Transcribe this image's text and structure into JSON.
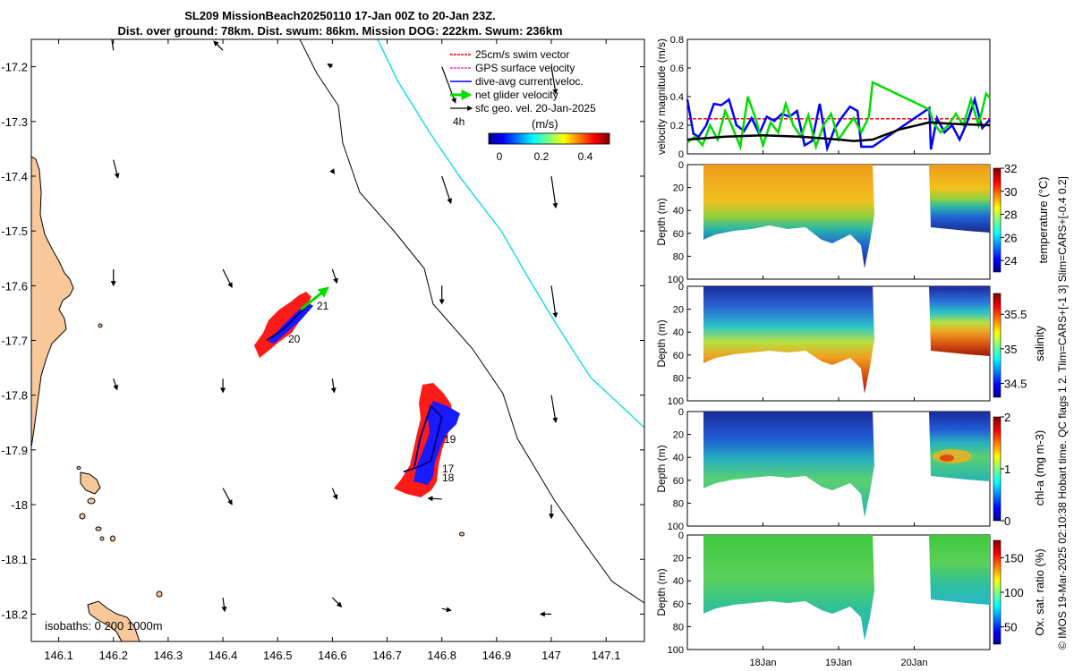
{
  "title": {
    "line1": "SL209 MissionBeach20250110 17-Jan 00Z to 20-Jan 23Z.",
    "line2": "Dist. over ground: 78km. Dist. swum: 86km. Mission DOG: 222km. Swum: 236km"
  },
  "side_credit": "© IMOS 19-Mar-2025 02:10:38 Hobart time. QC flags 1  2. Tlim=CARS+[-1 3] Slim=CARS+[-0.4 0.2]",
  "colors": {
    "land": "#f8c89a",
    "coast_line": "#000000",
    "isobath_200": "#000000",
    "isobath_1000": "#22dddd",
    "swim": "#ff0000",
    "gps": "#ff33cc",
    "dive_avg": "#0000ff",
    "net": "#00dd00",
    "sfc_geo": "#000000"
  },
  "map": {
    "legend": {
      "items": [
        {
          "label": "25cm/s swim vector",
          "color": "#ff0000"
        },
        {
          "label": "GPS surface velocity",
          "color": "#ff33cc"
        },
        {
          "label": "dive-avg current veloc.",
          "color": "#0000ff"
        },
        {
          "label": "net glider velocity",
          "color": "#00dd00"
        },
        {
          "label": "sfc geo. vel. 20-Jan-2025",
          "color": "#000000"
        }
      ],
      "interval_label": "4h"
    },
    "colorbar": {
      "label": "(m/s)",
      "ticks": [
        "0",
        "0.2",
        "0.4"
      ],
      "range": [
        0,
        0.5
      ]
    },
    "isobath_note": "isobaths: 0   200  1000m",
    "day_labels": [
      "21",
      "20",
      "19",
      "18",
      "17"
    ]
  },
  "chart_data": [
    {
      "type": "map",
      "xlim": [
        146.05,
        147.17
      ],
      "ylim": [
        -18.25,
        -17.15
      ],
      "xticks": [
        "146.1",
        "146.2",
        "146.3",
        "146.4",
        "146.5",
        "146.6",
        "146.7",
        "146.8",
        "146.9",
        "147",
        "147.1"
      ],
      "yticks": [
        "-17.2",
        "-17.3",
        "-17.4",
        "-17.5",
        "-17.6",
        "-17.7",
        "-17.8",
        "-17.9",
        "-18",
        "-18.1",
        "-18.2"
      ],
      "glider_track_north": [
        [
          146.48,
          -17.7
        ],
        [
          146.51,
          -17.68
        ],
        [
          146.54,
          -17.65
        ],
        [
          146.57,
          -17.62
        ]
      ],
      "glider_track_south": [
        [
          146.73,
          -17.94
        ],
        [
          146.76,
          -17.93
        ],
        [
          146.78,
          -17.92
        ],
        [
          146.79,
          -17.88
        ],
        [
          146.8,
          -17.84
        ],
        [
          146.78,
          -17.82
        ],
        [
          146.76,
          -17.88
        ],
        [
          146.75,
          -17.93
        ]
      ],
      "geo_vectors": [
        {
          "lon": 146.2,
          "lat": -17.17,
          "u": -0.03,
          "v": 0.2
        },
        {
          "lon": 146.4,
          "lat": -17.17,
          "u": -0.1,
          "v": 0.1
        },
        {
          "lon": 146.6,
          "lat": -17.2,
          "u": -0.05,
          "v": 0.03
        },
        {
          "lon": 146.8,
          "lat": -17.2,
          "u": 0.15,
          "v": -0.4
        },
        {
          "lon": 147.0,
          "lat": -17.2,
          "u": 0.05,
          "v": -0.3
        },
        {
          "lon": 146.2,
          "lat": -17.37,
          "u": 0.05,
          "v": -0.2
        },
        {
          "lon": 146.6,
          "lat": -17.39,
          "u": 0.02,
          "v": -0.03
        },
        {
          "lon": 146.8,
          "lat": -17.4,
          "u": 0.1,
          "v": -0.3
        },
        {
          "lon": 147.0,
          "lat": -17.4,
          "u": 0.05,
          "v": -0.35
        },
        {
          "lon": 146.2,
          "lat": -17.57,
          "u": 0.0,
          "v": -0.18
        },
        {
          "lon": 146.4,
          "lat": -17.57,
          "u": 0.1,
          "v": -0.2
        },
        {
          "lon": 146.6,
          "lat": -17.57,
          "u": 0.05,
          "v": -0.15
        },
        {
          "lon": 146.8,
          "lat": -17.6,
          "u": 0.0,
          "v": -0.2
        },
        {
          "lon": 147.0,
          "lat": -17.6,
          "u": 0.05,
          "v": -0.35
        },
        {
          "lon": 146.2,
          "lat": -17.77,
          "u": 0.04,
          "v": -0.12
        },
        {
          "lon": 146.4,
          "lat": -17.77,
          "u": 0.0,
          "v": -0.15
        },
        {
          "lon": 146.6,
          "lat": -17.77,
          "u": 0.02,
          "v": -0.15
        },
        {
          "lon": 147.0,
          "lat": -17.8,
          "u": 0.05,
          "v": -0.3
        },
        {
          "lon": 146.4,
          "lat": -17.97,
          "u": 0.1,
          "v": -0.18
        },
        {
          "lon": 146.6,
          "lat": -17.97,
          "u": 0.05,
          "v": -0.12
        },
        {
          "lon": 146.8,
          "lat": -17.99,
          "u": -0.15,
          "v": 0.01
        },
        {
          "lon": 147.0,
          "lat": -18.0,
          "u": 0.0,
          "v": -0.15
        },
        {
          "lon": 146.4,
          "lat": -18.17,
          "u": 0.02,
          "v": -0.15
        },
        {
          "lon": 146.6,
          "lat": -18.17,
          "u": 0.1,
          "v": -0.1
        },
        {
          "lon": 146.8,
          "lat": -18.19,
          "u": 0.1,
          "v": -0.02
        },
        {
          "lon": 147.0,
          "lat": -18.2,
          "u": -0.12,
          "v": 0.0
        }
      ]
    },
    {
      "type": "line",
      "ylabel": "velocity magnitude (m/s)",
      "ylim": [
        0,
        0.8
      ],
      "yticks": [
        "0",
        "0.2",
        "0.4",
        "0.6",
        "0.8"
      ],
      "xlim_days": [
        17.0,
        21.0
      ],
      "xticks": [
        {
          "day": 18.0,
          "label": "18Jan"
        },
        {
          "day": 19.0,
          "label": "19Jan"
        },
        {
          "day": 20.0,
          "label": "20Jan"
        }
      ],
      "series": [
        {
          "name": "swim speed",
          "color": "#ff0000",
          "dashed": true,
          "x": [
            17.0,
            19.45,
            20.2,
            21.0
          ],
          "values": [
            0.245,
            0.245,
            0.245,
            0.245
          ]
        },
        {
          "name": "dive-avg current",
          "color": "#0000ff",
          "x": [
            17.0,
            17.08,
            17.15,
            17.25,
            17.35,
            17.45,
            17.55,
            17.65,
            17.75,
            17.85,
            17.95,
            18.05,
            18.15,
            18.25,
            18.35,
            18.45,
            18.55,
            18.65,
            18.75,
            18.85,
            18.95,
            19.05,
            19.15,
            19.25,
            19.3,
            19.45,
            20.2,
            20.22,
            20.3,
            20.4,
            20.5,
            20.6,
            20.7,
            20.8,
            20.9,
            21.0
          ],
          "values": [
            0.38,
            0.14,
            0.12,
            0.2,
            0.35,
            0.34,
            0.38,
            0.2,
            0.16,
            0.25,
            0.14,
            0.26,
            0.23,
            0.28,
            0.26,
            0.3,
            0.06,
            0.09,
            0.35,
            0.04,
            0.18,
            0.26,
            0.33,
            0.3,
            0.05,
            0.05,
            0.32,
            0.03,
            0.25,
            0.15,
            0.2,
            0.1,
            0.22,
            0.38,
            0.18,
            0.24
          ]
        },
        {
          "name": "net glider velocity",
          "color": "#00dd00",
          "x": [
            17.0,
            17.1,
            17.2,
            17.3,
            17.4,
            17.5,
            17.6,
            17.7,
            17.8,
            17.9,
            18.0,
            18.1,
            18.2,
            18.3,
            18.4,
            18.5,
            18.6,
            18.7,
            18.8,
            18.9,
            19.0,
            19.1,
            19.2,
            19.3,
            19.4,
            19.45,
            20.2,
            20.25,
            20.35,
            20.45,
            20.55,
            20.65,
            20.75,
            20.85,
            20.95,
            21.0
          ],
          "values": [
            0.08,
            0.12,
            0.06,
            0.2,
            0.1,
            0.3,
            0.18,
            0.05,
            0.4,
            0.25,
            0.06,
            0.22,
            0.15,
            0.35,
            0.2,
            0.12,
            0.27,
            0.05,
            0.2,
            0.28,
            0.1,
            0.18,
            0.25,
            0.15,
            0.26,
            0.5,
            0.31,
            0.22,
            0.15,
            0.2,
            0.28,
            0.2,
            0.38,
            0.2,
            0.42,
            0.39
          ]
        },
        {
          "name": "sfc geo. vel.",
          "color": "#000000",
          "x": [
            17.0,
            17.5,
            18.0,
            18.5,
            19.0,
            19.2,
            19.45,
            19.8,
            20.2,
            20.5,
            21.0
          ],
          "values": [
            0.1,
            0.12,
            0.13,
            0.12,
            0.1,
            0.09,
            0.1,
            0.17,
            0.22,
            0.21,
            0.2
          ]
        }
      ]
    },
    {
      "type": "heatmap",
      "variable": "temperature",
      "cbar_label": "temperature (°C)",
      "clim": [
        23,
        32
      ],
      "cticks": [
        "24",
        "26",
        "28",
        "30",
        "32"
      ],
      "ylabel": "Depth (m)",
      "yticks": [
        "0",
        "20",
        "40",
        "60",
        "80",
        "100"
      ]
    },
    {
      "type": "heatmap",
      "variable": "salinity",
      "cbar_label": "salinity",
      "clim": [
        34.3,
        35.8
      ],
      "cticks": [
        "34.5",
        "35",
        "35.5"
      ],
      "ylabel": "Depth (m)",
      "yticks": [
        "0",
        "20",
        "40",
        "60",
        "80",
        "100"
      ]
    },
    {
      "type": "heatmap",
      "variable": "chl-a",
      "cbar_label": "chl-a (mg m-3)",
      "clim": [
        0,
        2
      ],
      "cticks": [
        "0",
        "1",
        "2"
      ],
      "ylabel": "Depth (m)",
      "yticks": [
        "0",
        "20",
        "40",
        "60",
        "80",
        "100"
      ]
    },
    {
      "type": "heatmap",
      "variable": "oxygen",
      "cbar_label": "Ox. sat. ratio (%)",
      "clim": [
        25,
        175
      ],
      "cticks": [
        "50",
        "100",
        "150"
      ],
      "ylabel": "Depth (m)",
      "yticks": [
        "0",
        "20",
        "40",
        "60",
        "80",
        "100"
      ]
    }
  ]
}
